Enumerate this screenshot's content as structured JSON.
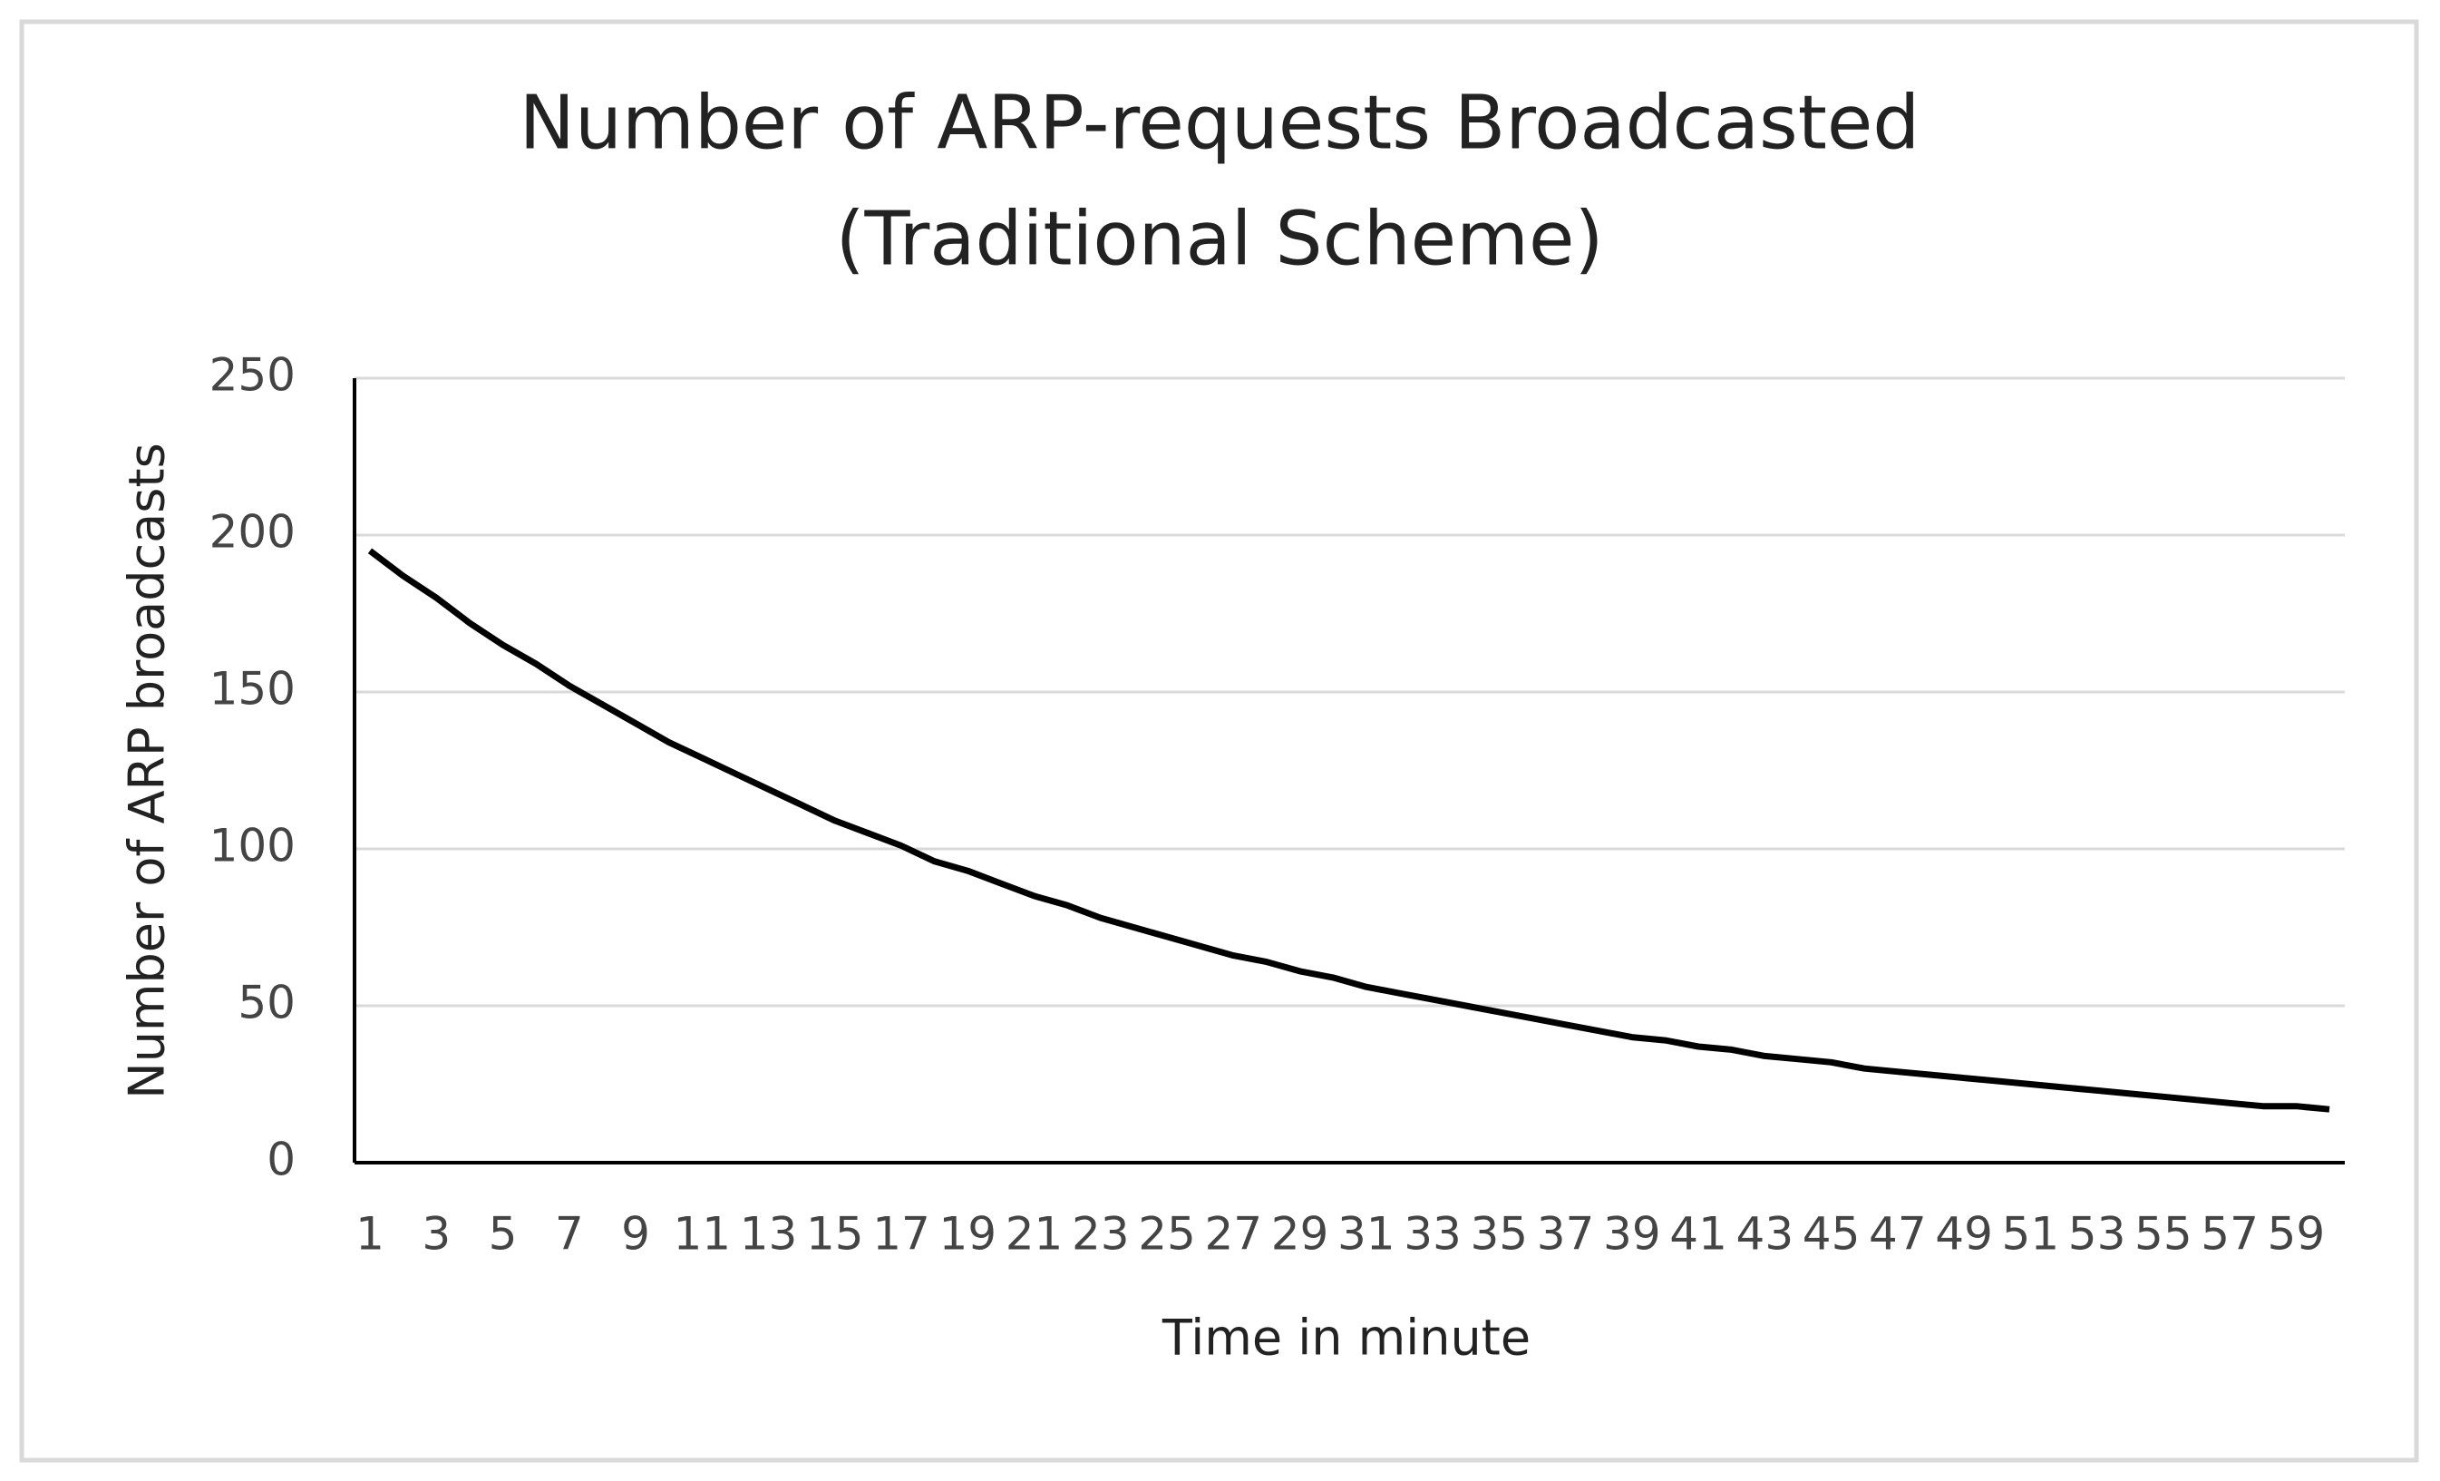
{
  "chart_data": {
    "type": "line",
    "title": [
      "Number of ARP-requests Broadcasted",
      "(Traditional Scheme)"
    ],
    "x_label": "Time in minute",
    "y_label": "Number  of ARP broadcasts",
    "categories": [
      1,
      null,
      3,
      null,
      5,
      null,
      7,
      null,
      9,
      null,
      11,
      null,
      13,
      null,
      15,
      null,
      17,
      null,
      19,
      null,
      21,
      null,
      23,
      null,
      25,
      null,
      27,
      null,
      29,
      null,
      31,
      null,
      33,
      null,
      35,
      null,
      37,
      null,
      39,
      null,
      41,
      null,
      43,
      null,
      45,
      null,
      47,
      null,
      49,
      null,
      51,
      null,
      53,
      null,
      55,
      null,
      57,
      null,
      59,
      null
    ],
    "series": [
      {
        "name": "ARP broadcasts",
        "color": "#000000",
        "values": [
          195,
          187,
          180,
          172,
          165,
          159,
          152,
          146,
          140,
          134,
          129,
          124,
          119,
          114,
          109,
          105,
          101,
          96,
          93,
          89,
          85,
          82,
          78,
          75,
          72,
          69,
          66,
          64,
          61,
          59,
          56,
          54,
          52,
          50,
          48,
          46,
          44,
          42,
          40,
          39,
          37,
          36,
          34,
          33,
          32,
          30,
          29,
          28,
          27,
          26,
          25,
          24,
          23,
          22,
          21,
          20,
          19,
          18,
          18,
          17
        ]
      }
    ],
    "ylim": [
      0,
      250
    ],
    "yticks": [
      0,
      50,
      100,
      150,
      200,
      250
    ],
    "grid": true
  }
}
